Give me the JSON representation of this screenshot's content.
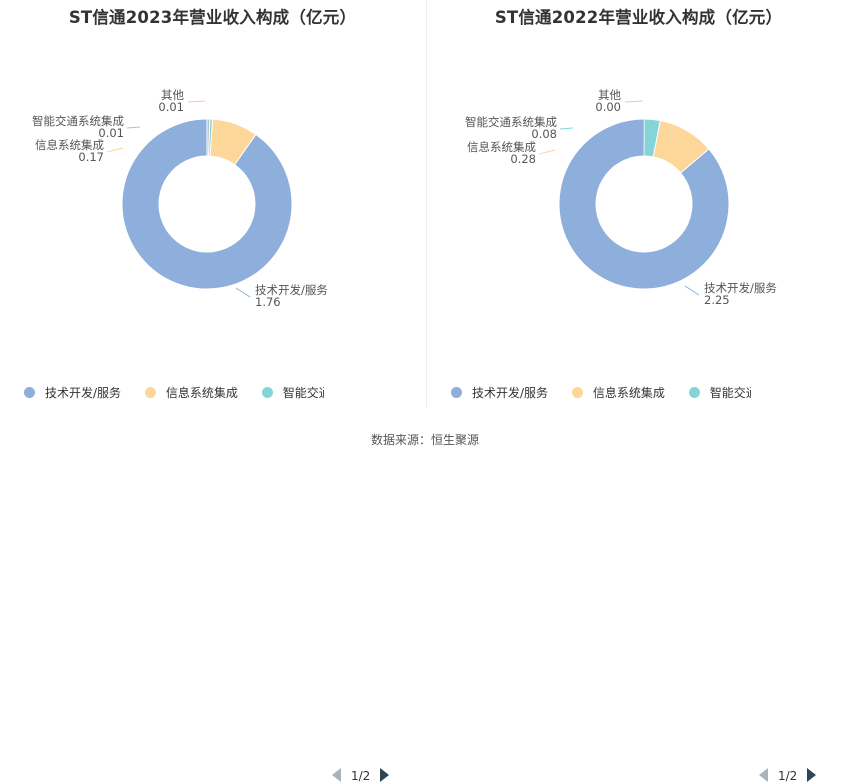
{
  "colors": {
    "series": [
      "#8eaedb",
      "#fdd79a",
      "#85d5d8",
      "#bdbdbd"
    ],
    "leader": [
      "#8eaedb",
      "#fdd79a",
      "#85d5d8",
      "#ffb8cf"
    ]
  },
  "chart_data": [
    {
      "type": "pie",
      "title": "ST信通2023年营业收入构成（亿元）",
      "categories": [
        "技术开发/服务",
        "信息系统集成",
        "智能交通系统集成",
        "其他"
      ],
      "values": [
        1.76,
        0.17,
        0.01,
        0.01
      ],
      "value_labels": [
        "1.76",
        "0.17",
        "0.01",
        "0.01"
      ],
      "legend": {
        "items": [
          "技术开发/服务",
          "信息系统集成",
          "智能交通系"
        ],
        "page": "1/2"
      }
    },
    {
      "type": "pie",
      "title": "ST信通2022年营业收入构成（亿元）",
      "categories": [
        "技术开发/服务",
        "信息系统集成",
        "智能交通系统集成",
        "其他"
      ],
      "values": [
        2.25,
        0.28,
        0.08,
        0.0
      ],
      "value_labels": [
        "2.25",
        "0.28",
        "0.08",
        "0.00"
      ],
      "legend": {
        "items": [
          "技术开发/服务",
          "信息系统集成",
          "智能交通系"
        ],
        "page": "1/2"
      }
    }
  ],
  "source": "数据来源：恒生聚源"
}
